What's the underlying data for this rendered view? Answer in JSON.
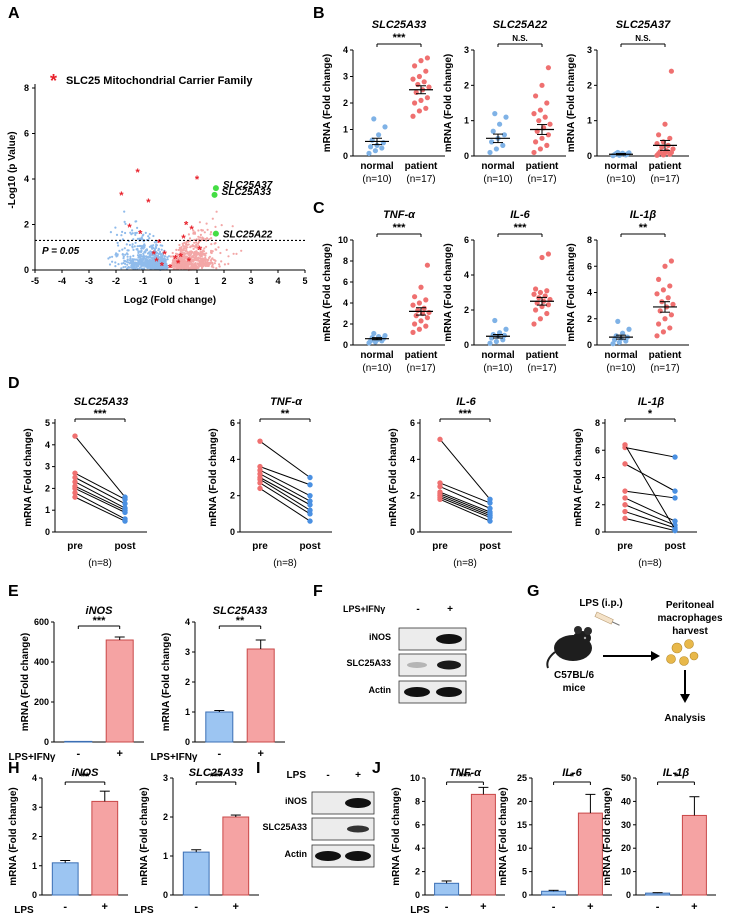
{
  "panels": {
    "A": "A",
    "B": "B",
    "C": "C",
    "D": "D",
    "E": "E",
    "F": "F",
    "G": "G",
    "H": "H",
    "I": "I",
    "J": "J"
  },
  "colors": {
    "normal": "#7fb2e6",
    "patient": "#ef7070",
    "volcano_down": "#8fbbeb",
    "volcano_up": "#f3a7a7",
    "highlight": "#44dd44",
    "slc25": "#e8202a",
    "bar_blue": "#9cc5f2",
    "bar_red": "#f5a3a3"
  },
  "volcano": {
    "legend": "SLC25 Mitochondrial Carrier Family",
    "xlabel": "Log2 (Fold change)",
    "ylabel": "-Log10 (p Value)",
    "xticks": [
      "-5",
      "-4",
      "-3",
      "-2",
      "-1",
      "0",
      "1",
      "2",
      "3",
      "4",
      "5"
    ],
    "yticks": [
      "0",
      "2",
      "4",
      "6",
      "8"
    ],
    "threshold_label": "P = 0.05",
    "genes": [
      {
        "name": "SLC25A37",
        "x": 1.7,
        "y": 3.6
      },
      {
        "name": "SLC25A33",
        "x": 1.65,
        "y": 3.3
      },
      {
        "name": "SLC25A22",
        "x": 1.7,
        "y": 1.6
      }
    ]
  },
  "chart_data": [
    {
      "panel": "A",
      "type": "scatter",
      "title": "Volcano plot",
      "xlabel": "Log2 (Fold change)",
      "ylabel": "-Log10 (p Value)",
      "xlim": [
        -5,
        5
      ],
      "ylim": [
        0,
        8
      ],
      "threshold_y": 1.3,
      "highlighted": [
        "SLC25A37",
        "SLC25A33",
        "SLC25A22"
      ]
    },
    {
      "panel": "B",
      "type": "scatter",
      "title": "SLC25A33",
      "categories": [
        "normal (n=10)",
        "patient (n=17)"
      ],
      "means": [
        0.55,
        2.5
      ],
      "ylim": [
        0,
        4
      ],
      "significance": "***"
    },
    {
      "panel": "B",
      "type": "scatter",
      "title": "SLC25A22",
      "categories": [
        "normal (n=10)",
        "patient (n=17)"
      ],
      "means": [
        0.5,
        0.75
      ],
      "ylim": [
        0,
        3
      ],
      "significance": "N.S."
    },
    {
      "panel": "B",
      "type": "scatter",
      "title": "SLC25A37",
      "categories": [
        "normal (n=10)",
        "patient (n=17)"
      ],
      "means": [
        0.05,
        0.3
      ],
      "ylim": [
        0,
        3
      ],
      "significance": "N.S."
    },
    {
      "panel": "C",
      "type": "scatter",
      "title": "TNF-α",
      "categories": [
        "normal (n=10)",
        "patient (n=17)"
      ],
      "means": [
        0.6,
        3.2
      ],
      "ylim": [
        0,
        10
      ],
      "significance": "***"
    },
    {
      "panel": "C",
      "type": "scatter",
      "title": "IL-6",
      "categories": [
        "normal (n=10)",
        "patient (n=17)"
      ],
      "means": [
        0.5,
        2.5
      ],
      "ylim": [
        0,
        6
      ],
      "significance": "***"
    },
    {
      "panel": "C",
      "type": "scatter",
      "title": "IL-1β",
      "categories": [
        "normal (n=10)",
        "patient (n=17)"
      ],
      "means": [
        0.6,
        2.9
      ],
      "ylim": [
        0,
        8
      ],
      "significance": "**"
    },
    {
      "panel": "E",
      "type": "bar",
      "title": "iNOS",
      "categories": [
        "-",
        "+"
      ],
      "values": [
        1,
        510
      ],
      "ylim": [
        0,
        600
      ],
      "significance": "***"
    },
    {
      "panel": "E",
      "type": "bar",
      "title": "SLC25A33",
      "categories": [
        "-",
        "+"
      ],
      "values": [
        1.0,
        3.1
      ],
      "ylim": [
        0,
        4
      ],
      "significance": "**"
    },
    {
      "panel": "H",
      "type": "bar",
      "title": "iNOS",
      "categories": [
        "-",
        "+"
      ],
      "values": [
        1.1,
        3.2
      ],
      "ylim": [
        0,
        4
      ],
      "significance": "**"
    },
    {
      "panel": "H",
      "type": "bar",
      "title": "SLC25A33",
      "categories": [
        "-",
        "+"
      ],
      "values": [
        1.1,
        2.0
      ],
      "ylim": [
        0,
        3
      ],
      "significance": "***"
    },
    {
      "panel": "J",
      "type": "bar",
      "title": "TNF-α",
      "categories": [
        "-",
        "+"
      ],
      "values": [
        1.0,
        8.6
      ],
      "ylim": [
        0,
        10
      ],
      "significance": "***"
    },
    {
      "panel": "J",
      "type": "bar",
      "title": "IL-6",
      "categories": [
        "-",
        "+"
      ],
      "values": [
        0.8,
        17.5
      ],
      "ylim": [
        0,
        25
      ],
      "significance": "*"
    },
    {
      "panel": "J",
      "type": "bar",
      "title": "IL-1β",
      "categories": [
        "-",
        "+"
      ],
      "values": [
        0.8,
        34
      ],
      "ylim": [
        0,
        50
      ],
      "significance": "*"
    }
  ],
  "labels": {
    "mrna_fold": "mRNA (Fold change)",
    "normal": "normal",
    "patient": "patient",
    "n_normal": "(n=10)",
    "n_patient": "(n=17)",
    "pre": "pre",
    "post": "post",
    "n8": "(n=8)",
    "lpsifn": "LPS+IFNγ",
    "lps": "LPS",
    "minus": "-",
    "plus": "+"
  },
  "dot_plots": [
    {
      "title": "SLC25A33",
      "sig": "***",
      "yticks": [
        "0",
        "1",
        "2",
        "3",
        "4"
      ],
      "ymax": 4,
      "normal": [
        0.1,
        0.2,
        0.3,
        0.35,
        0.4,
        0.5,
        0.6,
        0.8,
        1.1,
        1.4
      ],
      "patient": [
        1.5,
        1.7,
        1.8,
        2.0,
        2.1,
        2.2,
        2.4,
        2.5,
        2.6,
        2.7,
        2.8,
        2.9,
        3.0,
        3.2,
        3.4,
        3.6,
        3.7
      ],
      "mean": [
        0.55,
        2.5
      ],
      "sem": [
        0.12,
        0.15
      ]
    },
    {
      "title": "SLC25A22",
      "sig": "N.S.",
      "yticks": [
        "0",
        "1",
        "2",
        "3"
      ],
      "ymax": 3,
      "normal": [
        0.1,
        0.2,
        0.3,
        0.4,
        0.5,
        0.6,
        0.7,
        0.9,
        1.1,
        1.2
      ],
      "patient": [
        0.1,
        0.2,
        0.3,
        0.4,
        0.5,
        0.6,
        0.7,
        0.8,
        0.9,
        1.0,
        1.1,
        1.2,
        1.3,
        1.5,
        1.7,
        2.0,
        2.5
      ],
      "mean": [
        0.5,
        0.75
      ],
      "sem": [
        0.12,
        0.14
      ]
    },
    {
      "title": "SLC25A37",
      "sig": "N.S.",
      "yticks": [
        "0",
        "1",
        "2",
        "3"
      ],
      "ymax": 3,
      "normal": [
        0.01,
        0.02,
        0.03,
        0.04,
        0.05,
        0.06,
        0.07,
        0.08,
        0.09,
        0.1
      ],
      "patient": [
        0.02,
        0.03,
        0.05,
        0.07,
        0.09,
        0.1,
        0.12,
        0.15,
        0.2,
        0.25,
        0.3,
        0.35,
        0.4,
        0.5,
        0.6,
        0.9,
        2.4
      ],
      "mean": [
        0.05,
        0.3
      ],
      "sem": [
        0.02,
        0.14
      ]
    },
    {
      "title": "TNF-α",
      "sig": "***",
      "yticks": [
        "0",
        "2",
        "4",
        "6",
        "8",
        "10"
      ],
      "ymax": 10,
      "normal": [
        0.2,
        0.3,
        0.4,
        0.4,
        0.5,
        0.6,
        0.7,
        0.8,
        0.9,
        1.1
      ],
      "patient": [
        1.2,
        1.5,
        1.8,
        2.0,
        2.3,
        2.6,
        2.8,
        3.0,
        3.1,
        3.3,
        3.5,
        3.8,
        4.0,
        4.3,
        4.6,
        5.5,
        7.6
      ],
      "mean": [
        0.6,
        3.2
      ],
      "sem": [
        0.1,
        0.35
      ]
    },
    {
      "title": "IL-6",
      "sig": "***",
      "yticks": [
        "0",
        "2",
        "4",
        "6"
      ],
      "ymax": 6,
      "normal": [
        0.1,
        0.2,
        0.3,
        0.4,
        0.5,
        0.55,
        0.6,
        0.7,
        0.9,
        1.4
      ],
      "patient": [
        1.2,
        1.5,
        1.8,
        2.0,
        2.2,
        2.3,
        2.4,
        2.5,
        2.6,
        2.7,
        2.8,
        2.9,
        3.0,
        3.1,
        3.2,
        5.0,
        5.2
      ],
      "mean": [
        0.5,
        2.5
      ],
      "sem": [
        0.1,
        0.22
      ]
    },
    {
      "title": "IL-1β",
      "sig": "**",
      "yticks": [
        "0",
        "2",
        "4",
        "6",
        "8"
      ],
      "ymax": 8,
      "normal": [
        0.1,
        0.2,
        0.3,
        0.4,
        0.5,
        0.6,
        0.7,
        0.9,
        1.2,
        1.8
      ],
      "patient": [
        0.7,
        1.0,
        1.3,
        1.6,
        2.0,
        2.3,
        2.6,
        2.9,
        3.1,
        3.3,
        3.6,
        3.9,
        4.2,
        4.5,
        5.0,
        6.0,
        6.4
      ],
      "mean": [
        0.6,
        2.9
      ],
      "sem": [
        0.15,
        0.4
      ]
    }
  ],
  "paired": [
    {
      "title": "SLC25A33",
      "sig": "***",
      "ylabel": "mRNA (Fold change)",
      "yticks": [
        "0",
        "1",
        "2",
        "3",
        "4",
        "5"
      ],
      "ymax": 5,
      "pre": [
        1.6,
        1.8,
        2.0,
        2.1,
        2.3,
        2.5,
        2.7,
        4.4
      ],
      "post": [
        0.5,
        0.6,
        0.9,
        1.0,
        1.1,
        1.3,
        1.5,
        1.6
      ]
    },
    {
      "title": "TNF-α",
      "sig": "**",
      "ylabel": "mRNA (Fold change)",
      "yticks": [
        "0",
        "2",
        "4",
        "6"
      ],
      "ymax": 6,
      "pre": [
        2.4,
        2.7,
        2.9,
        3.0,
        3.2,
        3.4,
        3.6,
        5.0
      ],
      "post": [
        0.6,
        1.0,
        1.2,
        1.5,
        1.7,
        2.0,
        2.6,
        3.0
      ]
    },
    {
      "title": "IL-6",
      "sig": "***",
      "ylabel": "mRNA (Fold change)",
      "yticks": [
        "0",
        "2",
        "4",
        "6"
      ],
      "ymax": 6,
      "pre": [
        1.8,
        1.9,
        2.0,
        2.1,
        2.2,
        2.5,
        2.7,
        5.1
      ],
      "post": [
        0.6,
        0.8,
        0.9,
        1.0,
        1.1,
        1.3,
        1.6,
        1.8
      ]
    },
    {
      "title": "IL-1β",
      "sig": "*",
      "ylabel": "mRNA (Fold change)",
      "yticks": [
        "0",
        "2",
        "4",
        "6",
        "8"
      ],
      "ymax": 8,
      "pre": [
        1.0,
        1.5,
        2.0,
        2.5,
        3.0,
        5.0,
        6.2,
        6.4
      ],
      "post": [
        0.1,
        0.3,
        0.5,
        0.8,
        2.5,
        3.0,
        5.5,
        0.2
      ]
    }
  ],
  "bars_E": [
    {
      "title": "iNOS",
      "sig": "***",
      "yticks": [
        "0",
        "200",
        "400",
        "600"
      ],
      "ymax": 600,
      "values": [
        1,
        510
      ],
      "err": [
        0,
        15
      ]
    },
    {
      "title": "SLC25A33",
      "sig": "**",
      "yticks": [
        "0",
        "1",
        "2",
        "3",
        "4"
      ],
      "ymax": 4,
      "values": [
        1.0,
        3.1
      ],
      "err": [
        0.05,
        0.3
      ]
    }
  ],
  "bars_H": [
    {
      "title": "iNOS",
      "sig": "**",
      "yticks": [
        "0",
        "1",
        "2",
        "3",
        "4"
      ],
      "ymax": 4,
      "values": [
        1.1,
        3.2
      ],
      "err": [
        0.08,
        0.35
      ]
    },
    {
      "title": "SLC25A33",
      "sig": "***",
      "yticks": [
        "0",
        "1",
        "2",
        "3"
      ],
      "ymax": 3,
      "values": [
        1.1,
        2.0
      ],
      "err": [
        0.06,
        0.05
      ]
    }
  ],
  "bars_J": [
    {
      "title": "TNF-α",
      "sig": "***",
      "yticks": [
        "0",
        "2",
        "4",
        "6",
        "8",
        "10"
      ],
      "ymax": 10,
      "values": [
        1.0,
        8.6
      ],
      "err": [
        0.2,
        0.6
      ]
    },
    {
      "title": "IL-6",
      "sig": "*",
      "yticks": [
        "0",
        "5",
        "10",
        "15",
        "20",
        "25"
      ],
      "ymax": 25,
      "values": [
        0.8,
        17.5
      ],
      "err": [
        0.2,
        4.0
      ]
    },
    {
      "title": "IL-1β",
      "sig": "*",
      "yticks": [
        "0",
        "10",
        "20",
        "30",
        "40",
        "50"
      ],
      "ymax": 50,
      "values": [
        0.8,
        34
      ],
      "err": [
        0.2,
        8.0
      ]
    }
  ],
  "western_F": {
    "header": "LPS+IFNγ",
    "minus": "-",
    "plus": "+",
    "rows": [
      "iNOS",
      "SLC25A33",
      "Actin"
    ]
  },
  "western_I": {
    "header": "LPS",
    "minus": "-",
    "plus": "+",
    "rows": [
      "iNOS",
      "SLC25A33",
      "Actin"
    ]
  },
  "schematic": {
    "lps_ip": "LPS (i.p.)",
    "perit": "Peritoneal",
    "macro": "macrophages",
    "harvest": "harvest",
    "mouse1": "C57BL/6",
    "mouse2": "mice",
    "analysis": "Analysis"
  }
}
